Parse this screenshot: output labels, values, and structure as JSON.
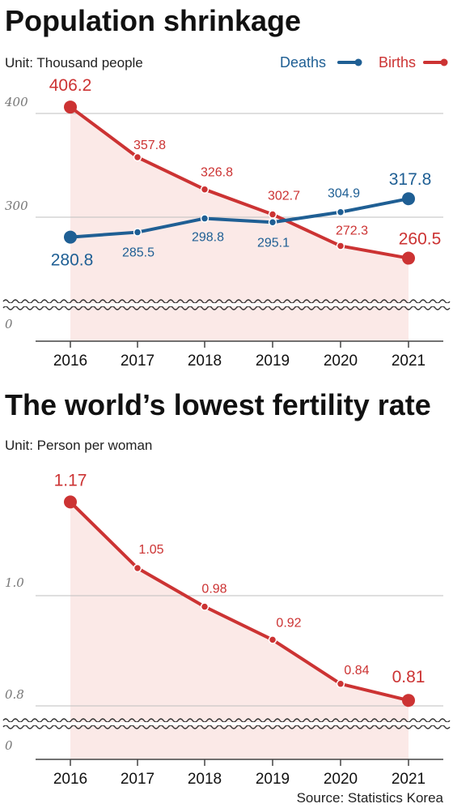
{
  "colors": {
    "deaths": "#1f5f94",
    "births": "#cc3333",
    "births_fill": "#fbe9e7",
    "grid": "#bfbfbf"
  },
  "chart_data": [
    {
      "type": "line",
      "title": "Population shrinkage",
      "unit": "Unit: Thousand people",
      "categories": [
        "2016",
        "2017",
        "2018",
        "2019",
        "2020",
        "2021"
      ],
      "series": [
        {
          "name": "Deaths",
          "values": [
            280.8,
            285.5,
            298.8,
            295.1,
            304.9,
            317.8
          ],
          "labels": [
            "280.8",
            "285.5",
            "298.8",
            "295.1",
            "304.9",
            "317.8"
          ]
        },
        {
          "name": "Births",
          "values": [
            406.2,
            357.8,
            326.8,
            302.7,
            272.3,
            260.5
          ],
          "labels": [
            "406.2",
            "357.8",
            "326.8",
            "302.7",
            "272.3",
            "260.5"
          ]
        }
      ],
      "yticks": [
        "400",
        "300",
        "0"
      ],
      "axis_break": true,
      "legend": "top-right"
    },
    {
      "type": "line",
      "title": "The world’s lowest fertility rate",
      "unit": "Unit: Person per woman",
      "categories": [
        "2016",
        "2017",
        "2018",
        "2019",
        "2020",
        "2021"
      ],
      "series": [
        {
          "values": [
            1.17,
            1.05,
            0.98,
            0.92,
            0.84,
            0.81
          ],
          "labels": [
            "1.17",
            "1.05",
            "0.98",
            "0.92",
            "0.84",
            "0.81"
          ]
        }
      ],
      "yticks": [
        "1.0",
        "0.8",
        "0"
      ],
      "axis_break": true
    }
  ],
  "source": "Source: Statistics Korea"
}
